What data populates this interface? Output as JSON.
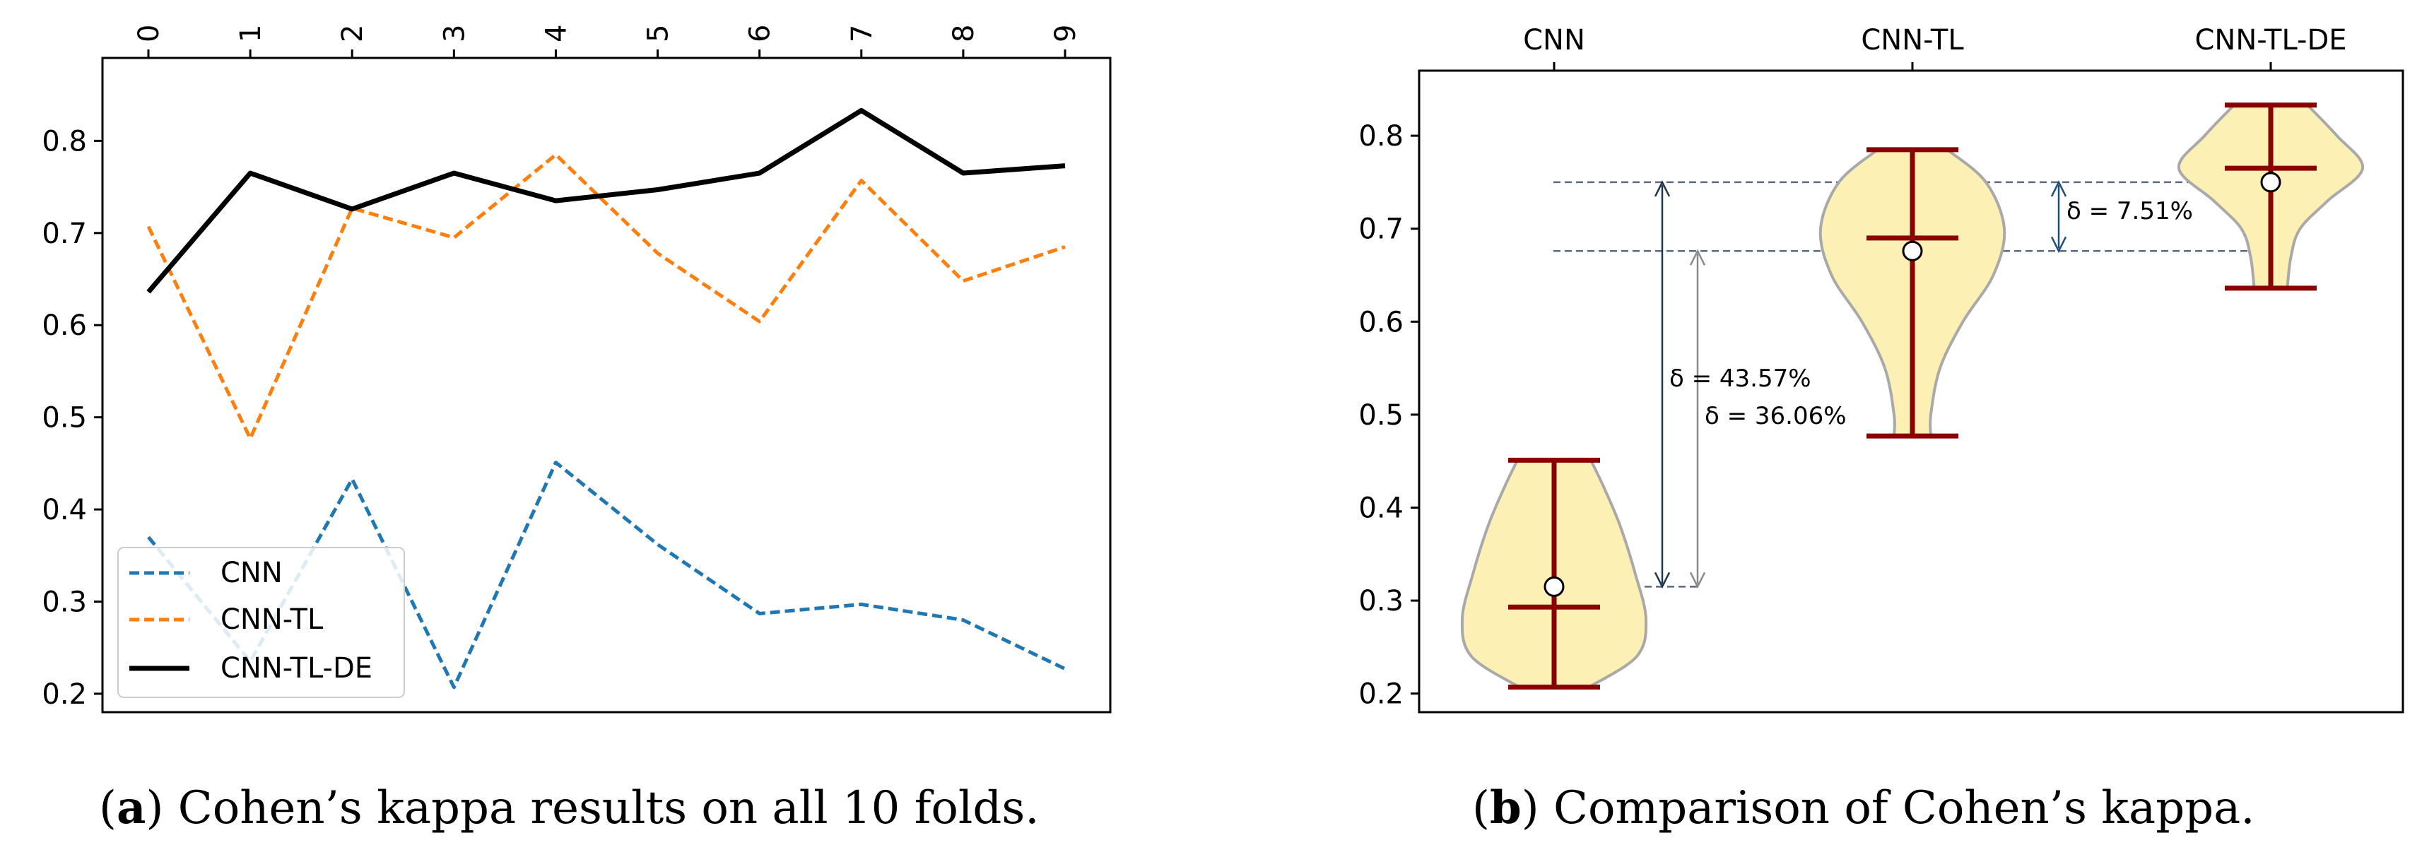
{
  "chart_data": [
    {
      "type": "line",
      "panel": "a",
      "x": [
        0,
        1,
        2,
        3,
        4,
        5,
        6,
        7,
        8,
        9
      ],
      "ylim": [
        0.18,
        0.89
      ],
      "yticks": [
        "0.2",
        "0.3",
        "0.4",
        "0.5",
        "0.6",
        "0.7",
        "0.8"
      ],
      "xticks": [
        "0",
        "1",
        "2",
        "3",
        "4",
        "5",
        "6",
        "7",
        "8",
        "9"
      ],
      "series": [
        {
          "name": "CNN",
          "style": "dashed",
          "color": "#1f77b4",
          "values": [
            0.37,
            0.235,
            0.433,
            0.207,
            0.451,
            0.362,
            0.287,
            0.297,
            0.28,
            0.227
          ]
        },
        {
          "name": "CNN-TL",
          "style": "dashed",
          "color": "#ff7f0e",
          "values": [
            0.707,
            0.477,
            0.727,
            0.695,
            0.785,
            0.678,
            0.604,
            0.757,
            0.648,
            0.685
          ]
        },
        {
          "name": "CNN-TL-DE",
          "style": "solid",
          "color": "#000000",
          "values": [
            0.636,
            0.765,
            0.726,
            0.765,
            0.735,
            0.747,
            0.765,
            0.833,
            0.765,
            0.773
          ]
        }
      ],
      "legend": [
        "CNN",
        "CNN-TL",
        "CNN-TL-DE"
      ],
      "legend_location": "lower-left",
      "caption_label": "a",
      "caption_text": " Cohen’s kappa results on all 10 folds."
    },
    {
      "type": "violin",
      "panel": "b",
      "categories": [
        "CNN",
        "CNN-TL",
        "CNN-TL-DE"
      ],
      "ylim": [
        0.18,
        0.87
      ],
      "yticks": [
        "0.2",
        "0.3",
        "0.4",
        "0.5",
        "0.6",
        "0.7",
        "0.8"
      ],
      "violins": [
        {
          "name": "CNN",
          "min": 0.207,
          "max": 0.451,
          "median": 0.293,
          "mean": 0.315,
          "profile": [
            [
              0.207,
              0.38
            ],
            [
              0.24,
              0.9
            ],
            [
              0.28,
              1.0
            ],
            [
              0.33,
              0.88
            ],
            [
              0.38,
              0.72
            ],
            [
              0.42,
              0.55
            ],
            [
              0.451,
              0.4
            ]
          ]
        },
        {
          "name": "CNN-TL",
          "min": 0.477,
          "max": 0.785,
          "median": 0.69,
          "mean": 0.676,
          "profile": [
            [
              0.477,
              0.2
            ],
            [
              0.5,
              0.2
            ],
            [
              0.55,
              0.3
            ],
            [
              0.6,
              0.55
            ],
            [
              0.65,
              0.88
            ],
            [
              0.7,
              1.0
            ],
            [
              0.75,
              0.8
            ],
            [
              0.785,
              0.38
            ]
          ]
        },
        {
          "name": "CNN-TL-DE",
          "min": 0.636,
          "max": 0.833,
          "median": 0.765,
          "mean": 0.75,
          "profile": [
            [
              0.636,
              0.18
            ],
            [
              0.67,
              0.22
            ],
            [
              0.7,
              0.32
            ],
            [
              0.73,
              0.62
            ],
            [
              0.765,
              1.0
            ],
            [
              0.8,
              0.72
            ],
            [
              0.833,
              0.4
            ]
          ]
        }
      ],
      "annotations": [
        {
          "text": "δ = 43.57%",
          "from": 0.315,
          "to": 0.75
        },
        {
          "text": "δ = 36.06%",
          "from": 0.315,
          "to": 0.676
        },
        {
          "text": "δ = 7.51%",
          "from": 0.676,
          "to": 0.75
        }
      ],
      "colors": {
        "fill": "#fdf0b4",
        "edge": "#a9a9a9",
        "whisker": "#8b0000",
        "guide": "#5a6a80",
        "arrow": "#1f4e79"
      },
      "caption_label": "b",
      "caption_text": " Comparison of Cohen’s kappa."
    }
  ]
}
